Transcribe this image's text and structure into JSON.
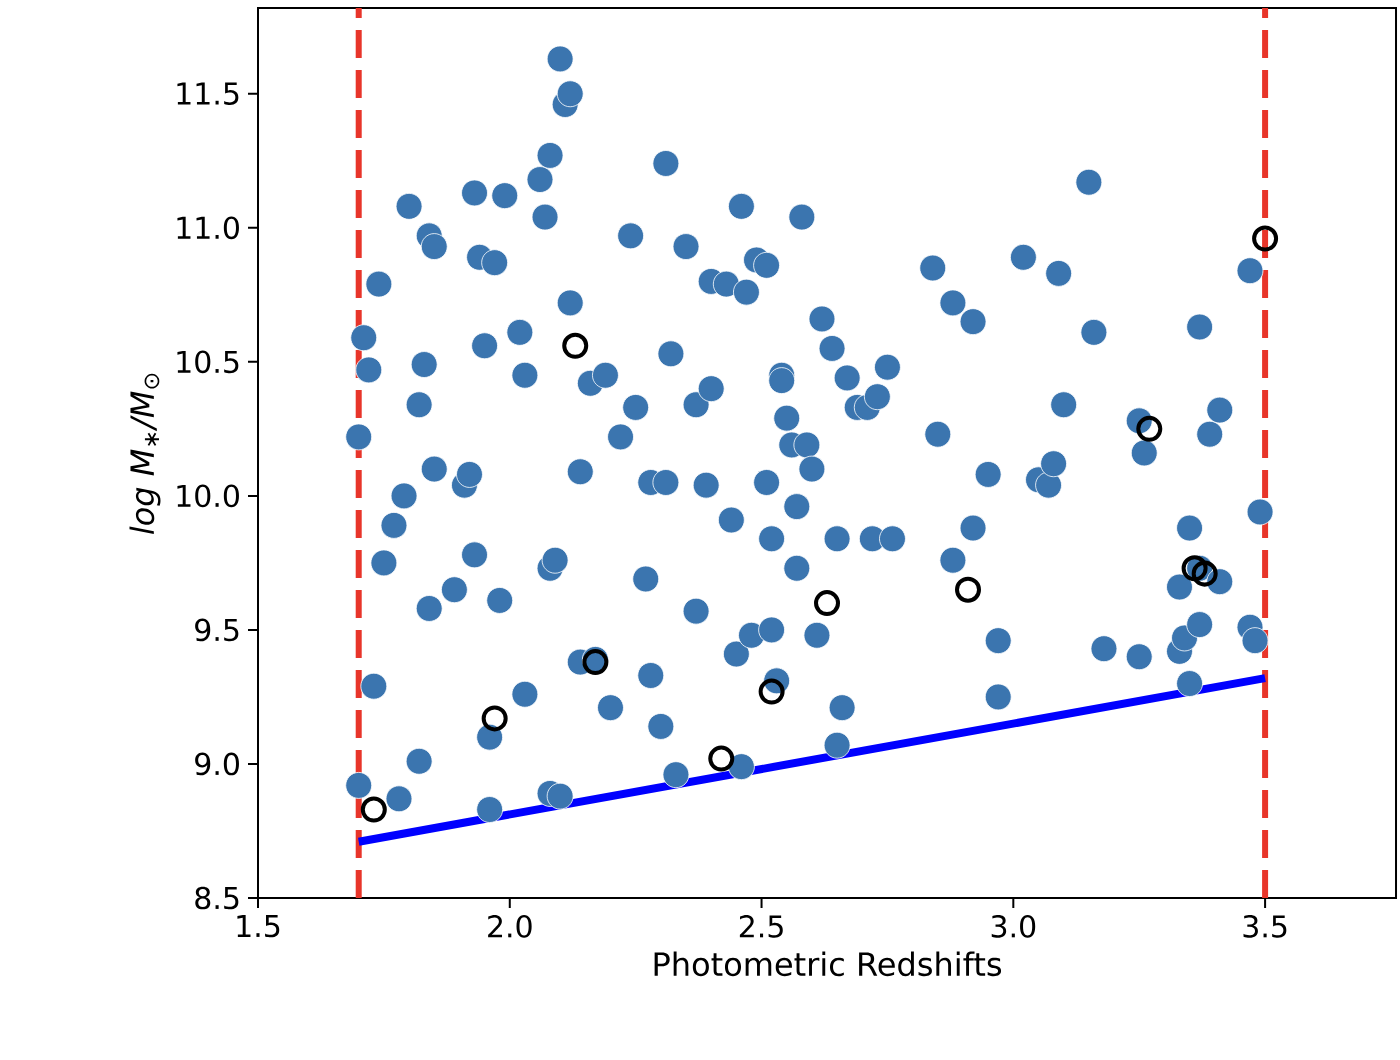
{
  "chart_data": {
    "type": "scatter",
    "xlabel": "Photometric Redshifts",
    "ylabel": "*log M*$_{∗}$*/M*$_{⊙}$",
    "xlim": [
      1.5,
      3.76
    ],
    "ylim": [
      8.5,
      11.82
    ],
    "xticks": [
      {
        "value": 1.5,
        "label": "1.5"
      },
      {
        "value": 2.0,
        "label": "2.0"
      },
      {
        "value": 2.5,
        "label": "2.5"
      },
      {
        "value": 3.0,
        "label": "3.0"
      },
      {
        "value": 3.5,
        "label": "3.5"
      }
    ],
    "yticks": [
      {
        "value": 8.5,
        "label": "8.5"
      },
      {
        "value": 9.0,
        "label": "9.0"
      },
      {
        "value": 9.5,
        "label": "9.5"
      },
      {
        "value": 10.0,
        "label": "10.0"
      },
      {
        "value": 10.5,
        "label": "10.5"
      },
      {
        "value": 11.0,
        "label": "11.0"
      },
      {
        "value": 11.5,
        "label": "11.5"
      }
    ],
    "grid": false,
    "marker": "circle",
    "series": [
      {
        "color": "#3b75af",
        "x": [
          1.7,
          1.71,
          1.72,
          1.7,
          1.73,
          1.74,
          1.75,
          1.77,
          1.78,
          1.79,
          1.8,
          1.82,
          1.82,
          1.83,
          1.84,
          1.85,
          1.85,
          1.84,
          1.89,
          1.91,
          1.92,
          1.93,
          1.94,
          1.93,
          1.95,
          1.96,
          1.96,
          1.97,
          1.98,
          1.99,
          2.02,
          2.03,
          2.03,
          2.06,
          2.07,
          2.08,
          2.08,
          2.09,
          2.1,
          2.11,
          2.12,
          2.08,
          2.1,
          2.12,
          2.14,
          2.14,
          2.16,
          2.17,
          2.19,
          2.2,
          2.22,
          2.24,
          2.25,
          2.27,
          2.28,
          2.28,
          2.3,
          2.31,
          2.31,
          2.32,
          2.33,
          2.35,
          2.37,
          2.37,
          2.39,
          2.4,
          2.4,
          2.43,
          2.44,
          2.45,
          2.46,
          2.46,
          2.47,
          2.48,
          2.49,
          2.51,
          2.51,
          2.52,
          2.52,
          2.53,
          2.54,
          2.54,
          2.55,
          2.56,
          2.57,
          2.57,
          2.58,
          2.59,
          2.6,
          2.61,
          2.62,
          2.64,
          2.65,
          2.65,
          2.66,
          2.67,
          2.69,
          2.71,
          2.72,
          2.73,
          2.75,
          2.76,
          2.84,
          2.85,
          2.88,
          2.88,
          2.92,
          2.92,
          2.95,
          2.97,
          2.97,
          3.02,
          3.05,
          3.07,
          3.08,
          3.09,
          3.1,
          3.15,
          3.16,
          3.18,
          3.25,
          3.25,
          3.26,
          3.33,
          3.33,
          3.34,
          3.35,
          3.35,
          3.37,
          3.37,
          3.37,
          3.39,
          3.41,
          3.41,
          3.47,
          3.47,
          3.48,
          3.49
        ],
        "values": [
          10.22,
          10.59,
          10.47,
          8.92,
          9.29,
          10.79,
          9.75,
          9.89,
          8.87,
          10.0,
          11.08,
          9.01,
          10.34,
          10.49,
          10.97,
          10.93,
          10.1,
          9.58,
          9.65,
          10.04,
          10.08,
          11.13,
          10.89,
          9.78,
          10.56,
          9.1,
          8.83,
          10.87,
          9.61,
          11.12,
          10.61,
          10.45,
          9.26,
          11.18,
          11.04,
          11.27,
          9.73,
          9.76,
          11.63,
          11.46,
          11.5,
          8.89,
          8.88,
          10.72,
          10.09,
          9.38,
          10.42,
          9.39,
          10.45,
          9.21,
          10.22,
          10.97,
          10.33,
          9.69,
          10.05,
          9.33,
          9.14,
          11.24,
          10.05,
          10.53,
          8.96,
          10.93,
          10.34,
          9.57,
          10.04,
          10.8,
          10.4,
          10.79,
          9.91,
          9.41,
          11.08,
          8.99,
          10.76,
          9.48,
          10.88,
          10.86,
          10.05,
          9.84,
          9.5,
          9.31,
          10.45,
          10.43,
          10.29,
          10.19,
          9.73,
          9.96,
          11.04,
          10.19,
          10.1,
          9.48,
          10.66,
          10.55,
          9.84,
          9.07,
          9.21,
          10.44,
          10.33,
          10.33,
          9.84,
          10.37,
          10.48,
          9.84,
          10.85,
          10.23,
          10.72,
          9.76,
          9.88,
          10.65,
          10.08,
          9.25,
          9.46,
          10.89,
          10.06,
          10.04,
          10.12,
          10.83,
          10.34,
          11.17,
          10.61,
          9.43,
          9.4,
          10.28,
          10.16,
          9.66,
          9.42,
          9.47,
          9.88,
          9.3,
          9.52,
          10.63,
          9.73,
          10.23,
          10.32,
          9.68,
          10.84,
          9.51,
          9.46,
          9.94
        ]
      },
      {
        "color": "#000000",
        "x": [
          1.73,
          1.97,
          2.13,
          2.17,
          2.42,
          2.52,
          2.63,
          2.91,
          3.27,
          3.36,
          3.38,
          3.5
        ],
        "values": [
          8.83,
          9.17,
          10.56,
          9.38,
          9.02,
          9.27,
          9.6,
          9.65,
          10.25,
          9.73,
          9.71,
          10.96
        ]
      },
      {
        "type": "line",
        "color": "#0000ff",
        "marker": "none",
        "line_style": "solid",
        "x": [
          1.7,
          3.5
        ],
        "values": [
          8.71,
          9.32
        ]
      }
    ],
    "ref_lines": [
      {
        "axis": "x",
        "value": 1.7,
        "color": "#e8352a",
        "line_style": "dashed"
      },
      {
        "axis": "x",
        "value": 3.5,
        "color": "#e8352a",
        "line_style": "dashed"
      }
    ]
  }
}
